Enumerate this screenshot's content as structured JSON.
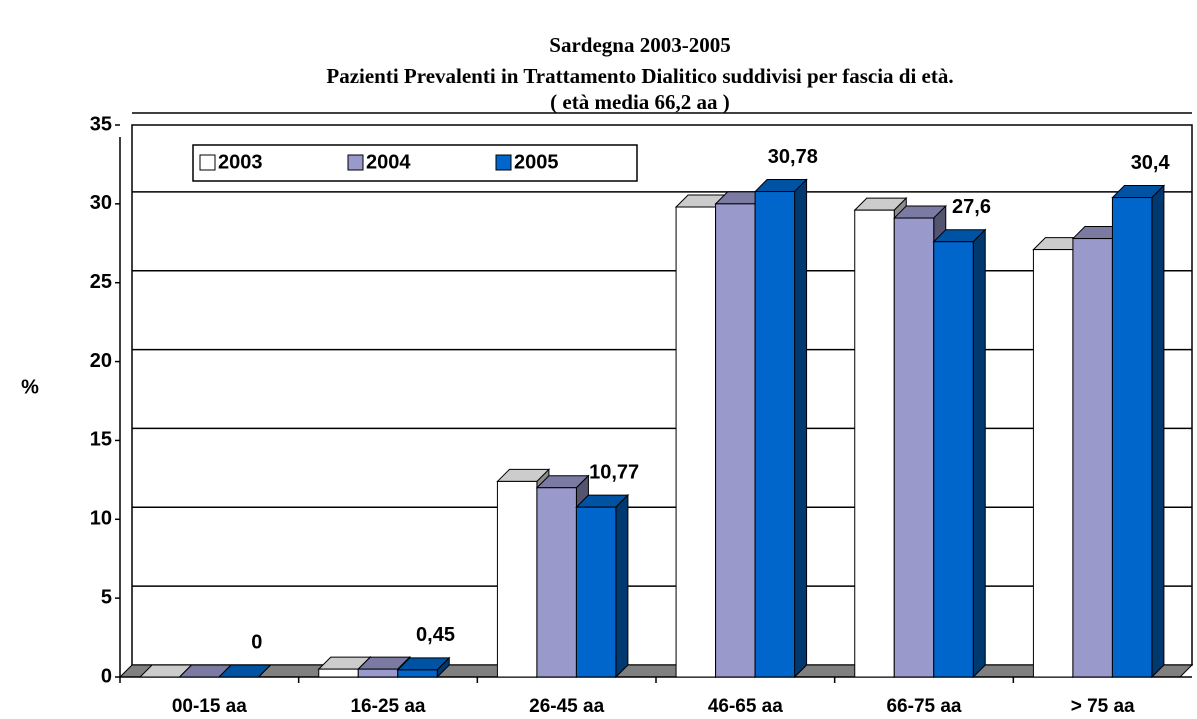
{
  "chart_data": {
    "type": "bar3d",
    "title": "Sardegna 2003-2005",
    "subtitle": "Pazienti Prevalenti in Trattamento Dialitico suddivisi per  fascia di età.",
    "note": "( età media 66,2 aa )",
    "y_label": "%",
    "categories": [
      "00-15 aa",
      "16-25 aa",
      "26-45 aa",
      "46-65 aa",
      "66-75 aa",
      "> 75 aa"
    ],
    "series": [
      {
        "name": "2003",
        "color": "#ffffff",
        "values": [
          0,
          0.5,
          12.4,
          29.8,
          29.6,
          27.1
        ]
      },
      {
        "name": "2004",
        "color": "#9999cc",
        "values": [
          0,
          0.5,
          12.0,
          30.0,
          29.1,
          27.8
        ]
      },
      {
        "name": "2005",
        "color": "#0066cc",
        "values": [
          0,
          0.45,
          10.77,
          30.78,
          27.6,
          30.4
        ],
        "value_labels": [
          "0",
          "0,45",
          "10,77",
          "30,78",
          "27,6",
          "30,4"
        ]
      }
    ],
    "ylim": [
      0,
      35
    ],
    "yticks": [
      0,
      5,
      10,
      15,
      20,
      25,
      30,
      35
    ],
    "grid": true,
    "legend": "top-left"
  }
}
